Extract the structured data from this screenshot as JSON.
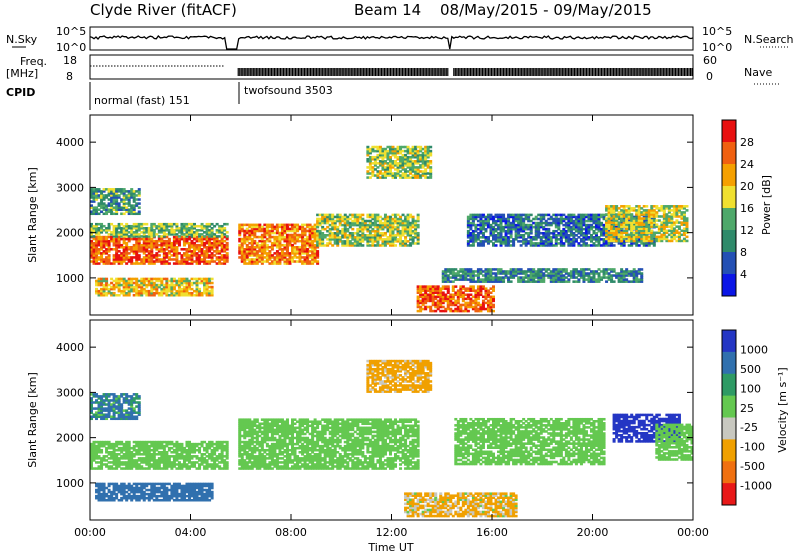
{
  "header": {
    "title": "Clyde River (fitACF)",
    "beam_label": "Beam 14",
    "date_range": "08/May/2015 - 09/May/2015"
  },
  "nsky_panel": {
    "left_label": "N.Sky",
    "right_label": "N.Search",
    "left_ticks": [
      "10^5",
      "10^0"
    ],
    "right_ticks": [
      "10^5",
      "10^0"
    ]
  },
  "freq_panel": {
    "left_label_line1": "Freq.",
    "left_label_line2": "[MHz]",
    "right_label": "Nave",
    "left_ticks": [
      "18",
      "8"
    ],
    "right_ticks": [
      "60",
      "0"
    ]
  },
  "cpid": {
    "label": "CPID",
    "segments": [
      {
        "name": "normal (fast) 151",
        "start_hour": 0.0
      },
      {
        "name": "twofsound 3503",
        "start_hour": 5.85
      }
    ]
  },
  "x_axis": {
    "label": "Time UT",
    "ticks": [
      "00:00",
      "04:00",
      "08:00",
      "12:00",
      "16:00",
      "20:00",
      "00:00"
    ],
    "range_hours": [
      0,
      24
    ]
  },
  "power_panel": {
    "ylabel": "Slant Range [km]",
    "yticks": [
      "1000",
      "2000",
      "3000",
      "4000"
    ],
    "colorbar_label": "Power [dB]",
    "colorbar_ticks": [
      "28",
      "24",
      "20",
      "16",
      "12",
      "8",
      "4"
    ]
  },
  "velocity_panel": {
    "ylabel": "Slant Range [km]",
    "yticks": [
      "1000",
      "2000",
      "3000",
      "4000"
    ],
    "colorbar_label": "Velocity [m s⁻¹]",
    "colorbar_ticks": [
      "1000",
      "500",
      "100",
      "25",
      "-25",
      "-100",
      "-500",
      "-1000"
    ]
  },
  "chart_data": [
    {
      "type": "heatmap",
      "title": "Power",
      "xlabel": "Time UT",
      "ylabel": "Slant Range [km]",
      "xlim_hours": [
        0,
        24
      ],
      "ylim_km": [
        180,
        4600
      ],
      "colorscale": [
        "#0b16e6",
        "#2450b4",
        "#2f8a6a",
        "#4ea86a",
        "#f0e030",
        "#f5a000",
        "#f06010",
        "#e81010"
      ],
      "color_range_db": [
        0,
        32
      ],
      "regions": [
        {
          "t0": 0.0,
          "t1": 5.4,
          "r0": 1300,
          "r1": 1900,
          "db": 26
        },
        {
          "t0": 0.0,
          "t1": 5.4,
          "r0": 1900,
          "r1": 2200,
          "db": 14
        },
        {
          "t0": 0.2,
          "t1": 4.8,
          "r0": 600,
          "r1": 1000,
          "db": 20
        },
        {
          "t0": 0.0,
          "t1": 2.0,
          "r0": 2400,
          "r1": 2950,
          "db": 12
        },
        {
          "t0": 5.9,
          "t1": 9.0,
          "r0": 1300,
          "r1": 2200,
          "db": 24
        },
        {
          "t0": 9.0,
          "t1": 13.0,
          "r0": 1700,
          "r1": 2400,
          "db": 16
        },
        {
          "t0": 11.0,
          "t1": 13.5,
          "r0": 3200,
          "r1": 3900,
          "db": 16
        },
        {
          "t0": 13.0,
          "t1": 16.0,
          "r0": 250,
          "r1": 800,
          "db": 26
        },
        {
          "t0": 14.0,
          "t1": 22.0,
          "r0": 900,
          "r1": 1200,
          "db": 10
        },
        {
          "t0": 15.0,
          "t1": 22.5,
          "r0": 1700,
          "r1": 2400,
          "db": 8
        },
        {
          "t0": 20.5,
          "t1": 23.8,
          "r0": 1800,
          "r1": 2600,
          "db": 18
        }
      ]
    },
    {
      "type": "heatmap",
      "title": "Velocity",
      "xlabel": "Time UT",
      "ylabel": "Slant Range [km]",
      "xlim_hours": [
        0,
        24
      ],
      "ylim_km": [
        180,
        4600
      ],
      "velocity_levels_mps": [
        1000,
        500,
        100,
        25,
        -25,
        -100,
        -500,
        -1000
      ],
      "level_colors": [
        "#2436c4",
        "#3070ae",
        "#2e9a64",
        "#64c850",
        "#c8c8c0",
        "#f0a000",
        "#f07010",
        "#e81818"
      ],
      "regions": [
        {
          "t0": 0.0,
          "t1": 5.4,
          "r0": 1300,
          "r1": 1900,
          "v": 0
        },
        {
          "t0": 0.2,
          "t1": 4.8,
          "r0": 600,
          "r1": 1000,
          "v": 300
        },
        {
          "t0": 0.0,
          "t1": 2.0,
          "r0": 2400,
          "r1": 2950,
          "v": 150
        },
        {
          "t0": 5.9,
          "t1": 13.0,
          "r0": 1300,
          "r1": 2400,
          "v": 0
        },
        {
          "t0": 11.0,
          "t1": 13.5,
          "r0": 3000,
          "r1": 3700,
          "v": -200
        },
        {
          "t0": 12.5,
          "t1": 17.0,
          "r0": 250,
          "r1": 750,
          "v": -150
        },
        {
          "t0": 14.5,
          "t1": 20.5,
          "r0": 1400,
          "r1": 2400,
          "v": 0
        },
        {
          "t0": 20.8,
          "t1": 23.5,
          "r0": 1900,
          "r1": 2500,
          "v": 900
        },
        {
          "t0": 22.5,
          "t1": 24.0,
          "r0": 1500,
          "r1": 2300,
          "v": 0
        }
      ]
    }
  ]
}
